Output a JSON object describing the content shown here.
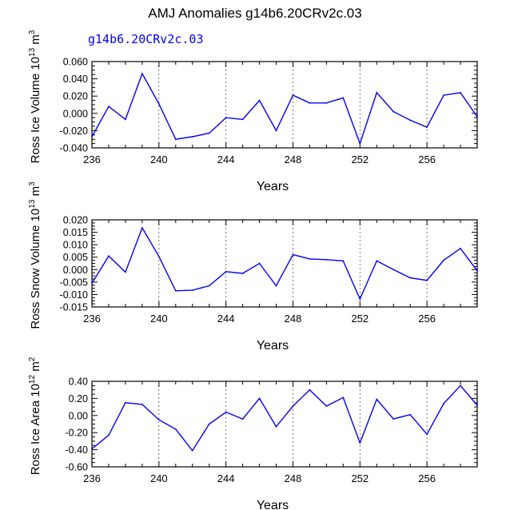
{
  "page": {
    "title": "AMJ Anomalies g14b6.20CRv2c.03",
    "case_label": "g14b6.20CRv2c.03",
    "line_color": "#0000ff"
  },
  "chart_data": [
    {
      "type": "line",
      "title": "",
      "xlabel": "Years",
      "ylabel": "Ross Ice Volume 10^13 m^3",
      "ylabel_parts": {
        "main": "Ross Ice Volume 10",
        "exp1": "13",
        "mid": " m",
        "exp2": "3"
      },
      "xlim": [
        236,
        259
      ],
      "ylim": [
        -0.04,
        0.06
      ],
      "xticks": [
        236,
        240,
        244,
        248,
        252,
        256
      ],
      "xtick_labels": [
        "236",
        "240",
        "244",
        "248",
        "252",
        "256"
      ],
      "yticks": [
        -0.04,
        -0.02,
        0.0,
        0.02,
        0.04,
        0.06
      ],
      "ytick_labels": [
        "-0.040",
        "-0.020",
        "0.000",
        "0.020",
        "0.040",
        "0.060"
      ],
      "dashed_x": [
        240,
        244,
        248,
        252,
        256
      ],
      "series": [
        {
          "name": "Ross Ice Volume",
          "x": [
            236,
            237,
            238,
            239,
            240,
            241,
            242,
            243,
            244,
            245,
            246,
            247,
            248,
            249,
            250,
            251,
            252,
            253,
            254,
            255,
            256,
            257,
            258,
            259
          ],
          "y": [
            -0.027,
            0.008,
            -0.007,
            0.046,
            0.011,
            -0.03,
            -0.027,
            -0.023,
            -0.005,
            -0.007,
            0.015,
            -0.02,
            0.021,
            0.012,
            0.012,
            0.018,
            -0.035,
            0.024,
            0.002,
            -0.008,
            -0.016,
            0.021,
            0.024,
            -0.004
          ]
        }
      ]
    },
    {
      "type": "line",
      "title": "",
      "xlabel": "Years",
      "ylabel": "Ross Snow Volume 10^13 m^3",
      "ylabel_parts": {
        "main": "Ross Snow Volume 10",
        "exp1": "13",
        "mid": " m",
        "exp2": "3"
      },
      "xlim": [
        236,
        259
      ],
      "ylim": [
        -0.015,
        0.02
      ],
      "xticks": [
        236,
        240,
        244,
        248,
        252,
        256
      ],
      "xtick_labels": [
        "236",
        "240",
        "244",
        "248",
        "252",
        "256"
      ],
      "yticks": [
        -0.015,
        -0.01,
        -0.005,
        0.0,
        0.005,
        0.01,
        0.015,
        0.02
      ],
      "ytick_labels": [
        "-0.015",
        "-0.010",
        "-0.005",
        "0.000",
        "0.005",
        "0.010",
        "0.015",
        "0.020"
      ],
      "dashed_x": [
        240,
        244,
        248,
        252,
        256
      ],
      "series": [
        {
          "name": "Ross Snow Volume",
          "x": [
            236,
            237,
            238,
            239,
            240,
            241,
            242,
            243,
            244,
            245,
            246,
            247,
            248,
            249,
            250,
            251,
            252,
            253,
            254,
            255,
            256,
            257,
            258,
            259
          ],
          "y": [
            -0.0055,
            0.0055,
            -0.001,
            0.0168,
            0.0053,
            -0.0085,
            -0.0083,
            -0.0065,
            -0.0008,
            -0.0015,
            0.0025,
            -0.0065,
            0.006,
            0.0043,
            0.004,
            0.0035,
            -0.0118,
            0.0035,
            0.0,
            -0.0033,
            -0.0043,
            0.0038,
            0.0085,
            -0.0005
          ]
        }
      ]
    },
    {
      "type": "line",
      "title": "",
      "xlabel": "Years",
      "ylabel": "Ross Ice Area 10^12 m^2",
      "ylabel_parts": {
        "main": "Ross Ice Area 10",
        "exp1": "12",
        "mid": " m",
        "exp2": "2"
      },
      "xlim": [
        236,
        259
      ],
      "ylim": [
        -0.6,
        0.4
      ],
      "xticks": [
        236,
        240,
        244,
        248,
        252,
        256
      ],
      "xtick_labels": [
        "236",
        "240",
        "244",
        "248",
        "252",
        "256"
      ],
      "yticks": [
        -0.6,
        -0.4,
        -0.2,
        0.0,
        0.2,
        0.4
      ],
      "ytick_labels": [
        "-0.60",
        "-0.40",
        "-0.20",
        "0.00",
        "0.20",
        "0.40"
      ],
      "dashed_x": [
        240,
        244,
        248,
        252,
        256
      ],
      "series": [
        {
          "name": "Ross Ice Area",
          "x": [
            236,
            237,
            238,
            239,
            240,
            241,
            242,
            243,
            244,
            245,
            246,
            247,
            248,
            249,
            250,
            251,
            252,
            253,
            254,
            255,
            256,
            257,
            258,
            259
          ],
          "y": [
            -0.39,
            -0.23,
            0.15,
            0.13,
            -0.05,
            -0.16,
            -0.41,
            -0.1,
            0.04,
            -0.04,
            0.2,
            -0.13,
            0.11,
            0.3,
            0.11,
            0.21,
            -0.32,
            0.19,
            -0.04,
            0.01,
            -0.22,
            0.14,
            0.35,
            0.12
          ]
        }
      ]
    }
  ]
}
